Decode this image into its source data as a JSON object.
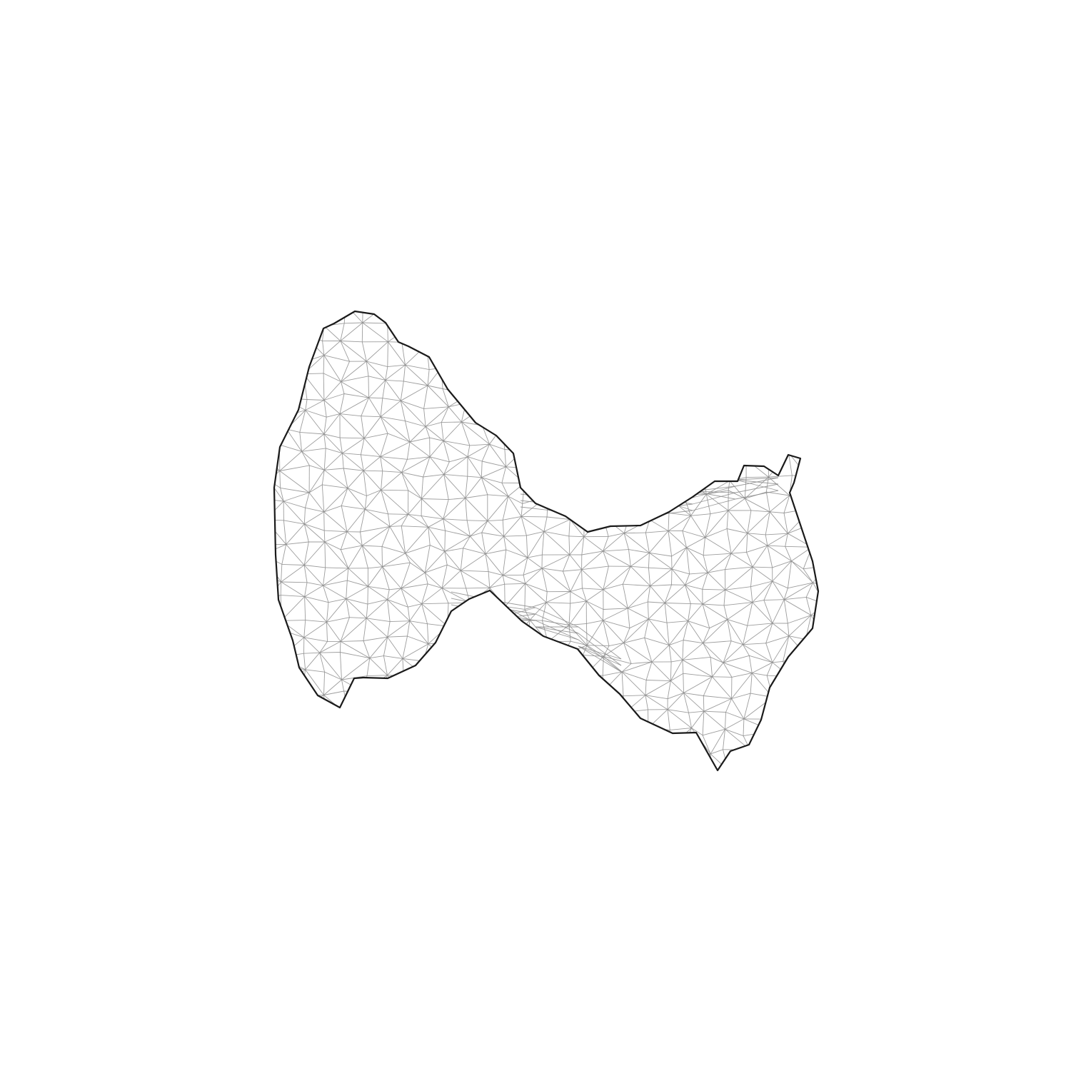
{
  "figure": {
    "kind": "triangulated surface mesh wireframe",
    "shape": "saddle-like warped sheet",
    "has_text": false
  },
  "style": {
    "background": "#ffffff",
    "boundary_color": "#1a1a1a",
    "mesh_color": "#8c8c8c"
  }
}
